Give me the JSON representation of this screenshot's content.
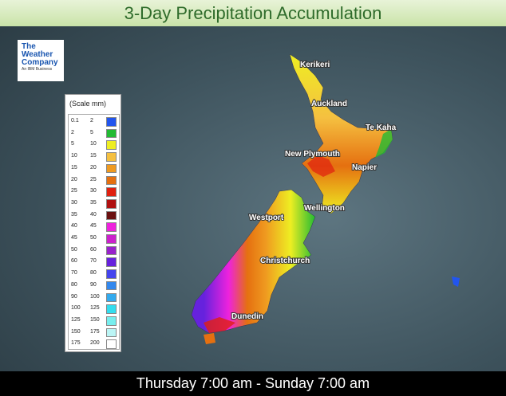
{
  "header": {
    "title": "3-Day Precipitation Accumulation"
  },
  "logo": {
    "lines": [
      "The",
      "Weather",
      "Company"
    ],
    "tagline": "An IBM Business"
  },
  "legend": {
    "title": "(Scale mm)",
    "rows": [
      {
        "min": 0.1,
        "max": 2,
        "color": "#2255ee"
      },
      {
        "min": 2,
        "max": 5,
        "color": "#22bb33"
      },
      {
        "min": 5,
        "max": 10,
        "color": "#eeee22"
      },
      {
        "min": 10,
        "max": 15,
        "color": "#f5c040"
      },
      {
        "min": 15,
        "max": 20,
        "color": "#ef9a20"
      },
      {
        "min": 20,
        "max": 25,
        "color": "#e57010"
      },
      {
        "min": 25,
        "max": 30,
        "color": "#e02010"
      },
      {
        "min": 30,
        "max": 35,
        "color": "#b01010"
      },
      {
        "min": 35,
        "max": 40,
        "color": "#6a1010"
      },
      {
        "min": 40,
        "max": 45,
        "color": "#ee22dd"
      },
      {
        "min": 45,
        "max": 50,
        "color": "#cc22cc"
      },
      {
        "min": 50,
        "max": 60,
        "color": "#9922cc"
      },
      {
        "min": 60,
        "max": 70,
        "color": "#6622dd"
      },
      {
        "min": 70,
        "max": 80,
        "color": "#4444ee"
      },
      {
        "min": 80,
        "max": 90,
        "color": "#3388ee"
      },
      {
        "min": 90,
        "max": 100,
        "color": "#33aaee"
      },
      {
        "min": 100,
        "max": 125,
        "color": "#33ddee"
      },
      {
        "min": 125,
        "max": 150,
        "color": "#77eeee"
      },
      {
        "min": 150,
        "max": 175,
        "color": "#bbf5f5"
      },
      {
        "min": 175,
        "max": 200,
        "color": "#ffffff"
      }
    ]
  },
  "cities": [
    "Kerikeri",
    "Auckland",
    "Te Kaha",
    "New Plymouth",
    "Napier",
    "Wellington",
    "Westport",
    "Christchurch",
    "Dunedin"
  ],
  "footer": {
    "text": "Thursday 7:00 am - Sunday 7:00 am"
  }
}
